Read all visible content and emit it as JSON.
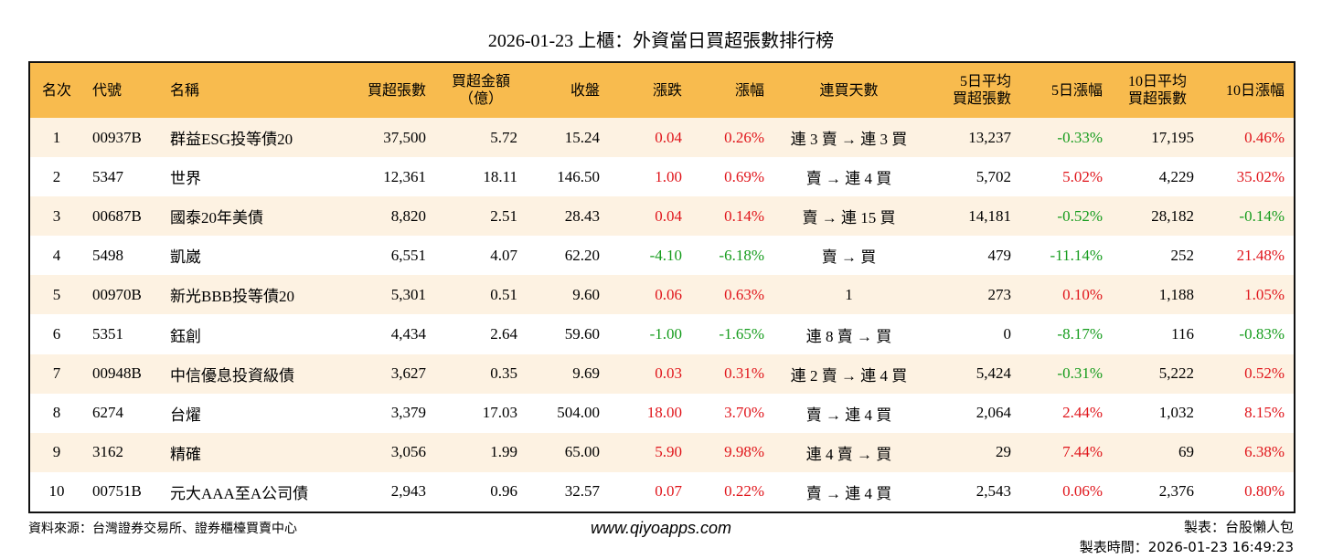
{
  "title": "2026-01-23 上櫃：外資當日買超張數排行榜",
  "table": {
    "headers": [
      "名次",
      "代號",
      "名稱",
      "買超張數",
      [
        "買超金額",
        "（億）"
      ],
      "收盤",
      "漲跌",
      "漲幅",
      "連買天數",
      [
        "5日平均",
        "買超張數"
      ],
      "5日漲幅",
      [
        "10日平均",
        "買超張數"
      ],
      "10日漲幅"
    ],
    "rows": [
      [
        "1",
        "00937B",
        "群益ESG投等債20",
        "37,500",
        "5.72",
        "15.24",
        "0.04",
        "0.26%",
        "連 3 賣 → 連 3 買",
        "13,237",
        "-0.33%",
        "17,195",
        "0.46%"
      ],
      [
        "2",
        "5347",
        "世界",
        "12,361",
        "18.11",
        "146.50",
        "1.00",
        "0.69%",
        "賣 → 連 4 買",
        "5,702",
        "5.02%",
        "4,229",
        "35.02%"
      ],
      [
        "3",
        "00687B",
        "國泰20年美債",
        "8,820",
        "2.51",
        "28.43",
        "0.04",
        "0.14%",
        "賣 → 連 15 買",
        "14,181",
        "-0.52%",
        "28,182",
        "-0.14%"
      ],
      [
        "4",
        "5498",
        "凱崴",
        "6,551",
        "4.07",
        "62.20",
        "-4.10",
        "-6.18%",
        "賣 → 買",
        "479",
        "-11.14%",
        "252",
        "21.48%"
      ],
      [
        "5",
        "00970B",
        "新光BBB投等債20",
        "5,301",
        "0.51",
        "9.60",
        "0.06",
        "0.63%",
        "1",
        "273",
        "0.10%",
        "1,188",
        "1.05%"
      ],
      [
        "6",
        "5351",
        "鈺創",
        "4,434",
        "2.64",
        "59.60",
        "-1.00",
        "-1.65%",
        "連 8 賣 → 買",
        "0",
        "-8.17%",
        "116",
        "-0.83%"
      ],
      [
        "7",
        "00948B",
        "中信優息投資級債",
        "3,627",
        "0.35",
        "9.69",
        "0.03",
        "0.31%",
        "連 2 賣 → 連 4 買",
        "5,424",
        "-0.31%",
        "5,222",
        "0.52%"
      ],
      [
        "8",
        "6274",
        "台燿",
        "3,379",
        "17.03",
        "504.00",
        "18.00",
        "3.70%",
        "賣 → 連 4 買",
        "2,064",
        "2.44%",
        "1,032",
        "8.15%"
      ],
      [
        "9",
        "3162",
        "精確",
        "3,056",
        "1.99",
        "65.00",
        "5.90",
        "9.98%",
        "連 4 賣 → 買",
        "29",
        "7.44%",
        "69",
        "6.38%"
      ],
      [
        "10",
        "00751B",
        "元大AAA至A公司債",
        "2,943",
        "0.96",
        "32.57",
        "0.07",
        "0.22%",
        "賣 → 連 4 買",
        "2,543",
        "0.06%",
        "2,376",
        "0.80%"
      ]
    ]
  },
  "footer": {
    "source": "資料來源：台灣證券交易所、證券櫃檯買賣中心",
    "website": "www.qiyoapps.com",
    "maker": "製表：台股懶人包",
    "time": "製表時間：2026-01-23 16:49:23"
  }
}
